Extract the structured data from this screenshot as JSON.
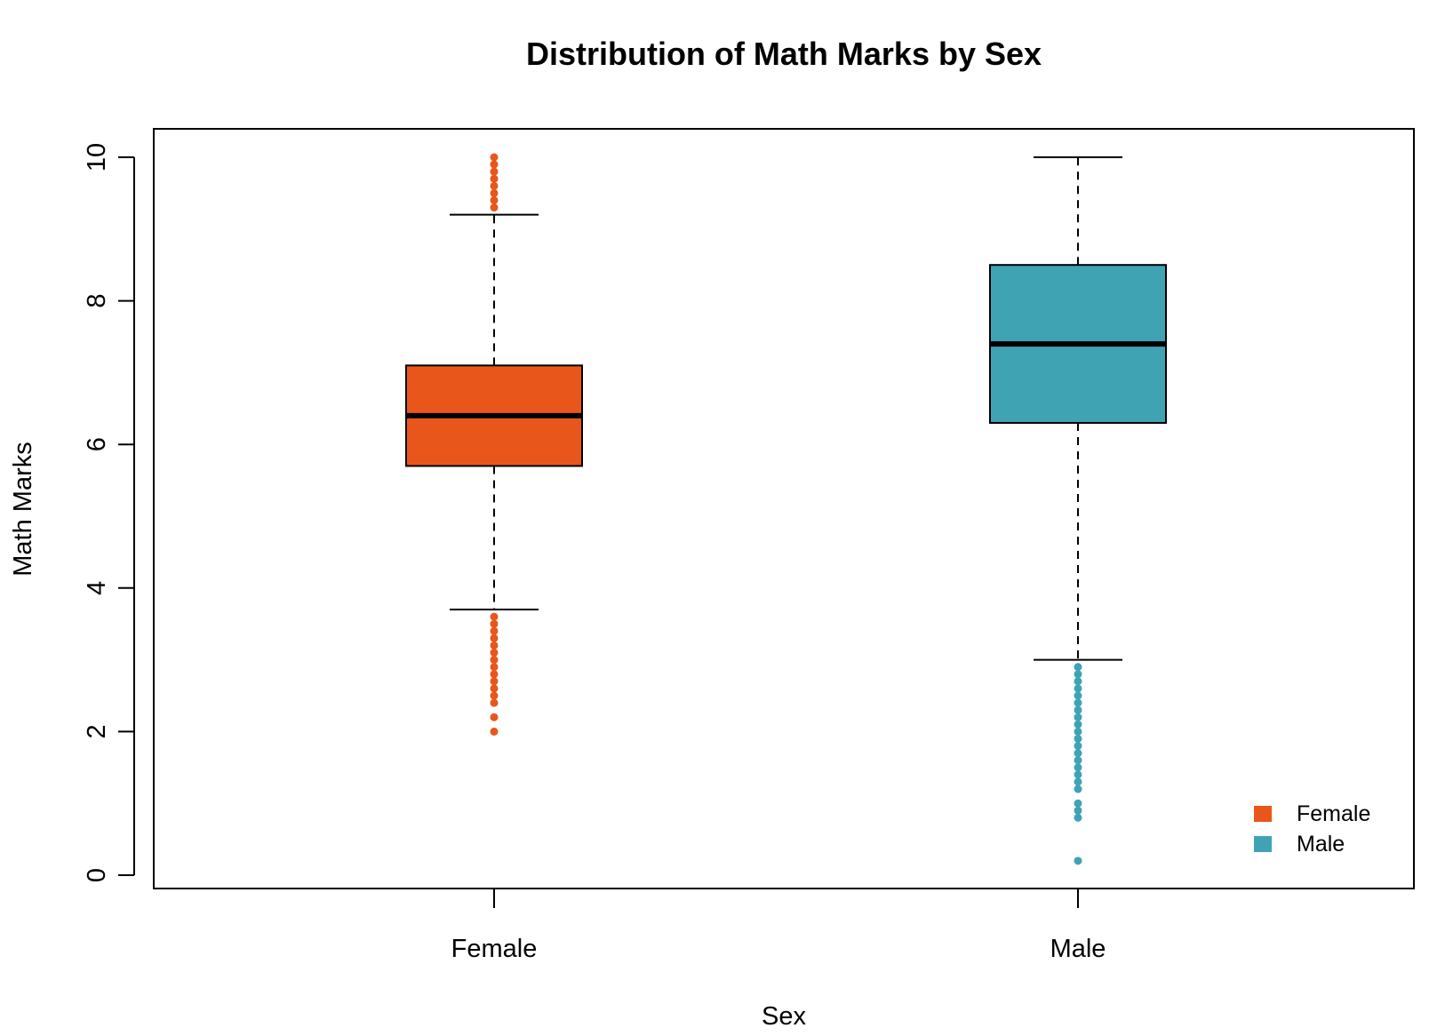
{
  "chart_data": {
    "type": "box",
    "title": "Distribution of Math Marks by Sex",
    "xlabel": "Sex",
    "ylabel": "Math Marks",
    "ylim": [
      -0.2,
      10.4
    ],
    "yticks": [
      0,
      2,
      4,
      6,
      8,
      10
    ],
    "categories": [
      "Female",
      "Male"
    ],
    "legend": {
      "position": "bottom-right",
      "entries": [
        "Female",
        "Male"
      ]
    },
    "grid": false,
    "boxes": [
      {
        "name": "Female",
        "color": "#E8561C",
        "whisker_low": 3.7,
        "q1": 5.7,
        "median": 6.4,
        "q3": 7.1,
        "whisker_high": 9.2,
        "outliers": [
          2.0,
          2.2,
          2.4,
          2.5,
          2.6,
          2.7,
          2.8,
          2.9,
          3.0,
          3.1,
          3.2,
          3.3,
          3.4,
          3.5,
          3.6,
          9.3,
          9.4,
          9.5,
          9.6,
          9.7,
          9.8,
          9.9,
          10.0
        ]
      },
      {
        "name": "Male",
        "color": "#3FA3B4",
        "whisker_low": 3.0,
        "q1": 6.3,
        "median": 7.4,
        "q3": 8.5,
        "whisker_high": 10.0,
        "outliers": [
          0.2,
          0.8,
          0.9,
          1.0,
          1.2,
          1.3,
          1.4,
          1.5,
          1.6,
          1.7,
          1.8,
          1.9,
          2.0,
          2.1,
          2.2,
          2.3,
          2.4,
          2.5,
          2.6,
          2.7,
          2.8,
          2.9
        ]
      }
    ]
  }
}
